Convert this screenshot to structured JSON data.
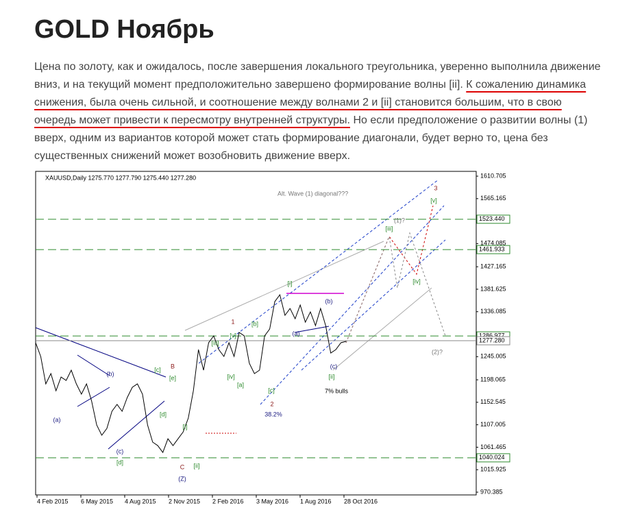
{
  "title": "GOLD Ноябрь",
  "paragraph": {
    "before": "Цена по золоту, как и ожидалось, после завершения локального треугольника, уверенно выполнила движение вниз, и на текущий момент предположительно завершено формирование волны [ii]. ",
    "underlined": "К сожалению динамика снижения, была очень сильной, и соотношение между волнами 2 и [ii] становится большим, что в свою очередь может привести к пересмотру внутренней структуры.",
    "after": " Но если предположение о развитии волны (1) вверх, одним из вариантов которой может стать формирование диагонали, будет верно то, цена без существенных снижений может возобновить движение вверх."
  },
  "chart_data": {
    "type": "line",
    "header": "XAUUSD,Daily  1275.770 1277.790 1275.440 1277.280",
    "x_labels": [
      "4 Feb 2015",
      "6 May 2015",
      "4 Aug 2015",
      "2 Nov 2015",
      "2 Feb 2016",
      "3 May 2016",
      "1 Aug 2016",
      "28 Oct 2016"
    ],
    "ylim": [
      970.385,
      1610.705
    ],
    "yticks": [
      1610.705,
      1565.165,
      1474.085,
      1427.165,
      1381.625,
      1336.085,
      1245.005,
      1198.065,
      1152.545,
      1107.005,
      1061.465,
      1015.925,
      970.385
    ],
    "color": "#000000",
    "values": [
      1273.2,
      1245.4,
      1189.8,
      1210.7,
      1175.9,
      1203.7,
      1196.8,
      1217.6,
      1189.8,
      1169.0,
      1189.8,
      1155.1,
      1106.5,
      1085.7,
      1099.5,
      1134.3,
      1148.2,
      1134.3,
      1162.1,
      1182.9,
      1189.8,
      1169.0,
      1106.5,
      1071.8,
      1064.8,
      1050.9,
      1078.7,
      1064.8,
      1078.7,
      1092.6,
      1120.4,
      1175.9,
      1259.3,
      1217.6,
      1273.2,
      1287.1,
      1259.3,
      1245.4,
      1273.2,
      1245.4,
      1294.0,
      1287.1,
      1231.5,
      1210.7,
      1217.6,
      1287.1,
      1301.0,
      1356.5,
      1370.4,
      1328.7,
      1342.6,
      1321.8,
      1349.6,
      1314.8,
      1335.7,
      1307.9,
      1342.6,
      1307.9,
      1252.3,
      1259.3,
      1273.2,
      1276.0
    ],
    "levels": [
      {
        "value": 1523.44,
        "label": "1523.440",
        "color": "#2e8b2e"
      },
      {
        "value": 1461.933,
        "label": "1461.933",
        "color": "#2e8b2e"
      },
      {
        "value": 1286.977,
        "label": "1286.977",
        "color": "#2e8b2e"
      },
      {
        "value": 1277.28,
        "label": "1277.280",
        "color": "#888888"
      },
      {
        "value": 1040.024,
        "label": "1040.024",
        "color": "#2e8b2e"
      }
    ],
    "annotations": [
      "Alt. Wave (1) diagonal???",
      "3",
      "[v]",
      "[iii]",
      "(1)?",
      "[iv]",
      "(2)?",
      "[i]",
      "(b)",
      "(a)",
      "1",
      "[b]",
      "[v]",
      "[iii]",
      "[iv]",
      "[a]",
      "[c]",
      "2",
      "38.2%",
      "(c)",
      "[ii]",
      "7% bulls",
      "[c]",
      "B",
      "[e]",
      "[d]",
      "(b)",
      "(a)",
      "(c)",
      "[d]",
      "[i]",
      "C",
      "[ii]",
      "(Z)"
    ]
  }
}
